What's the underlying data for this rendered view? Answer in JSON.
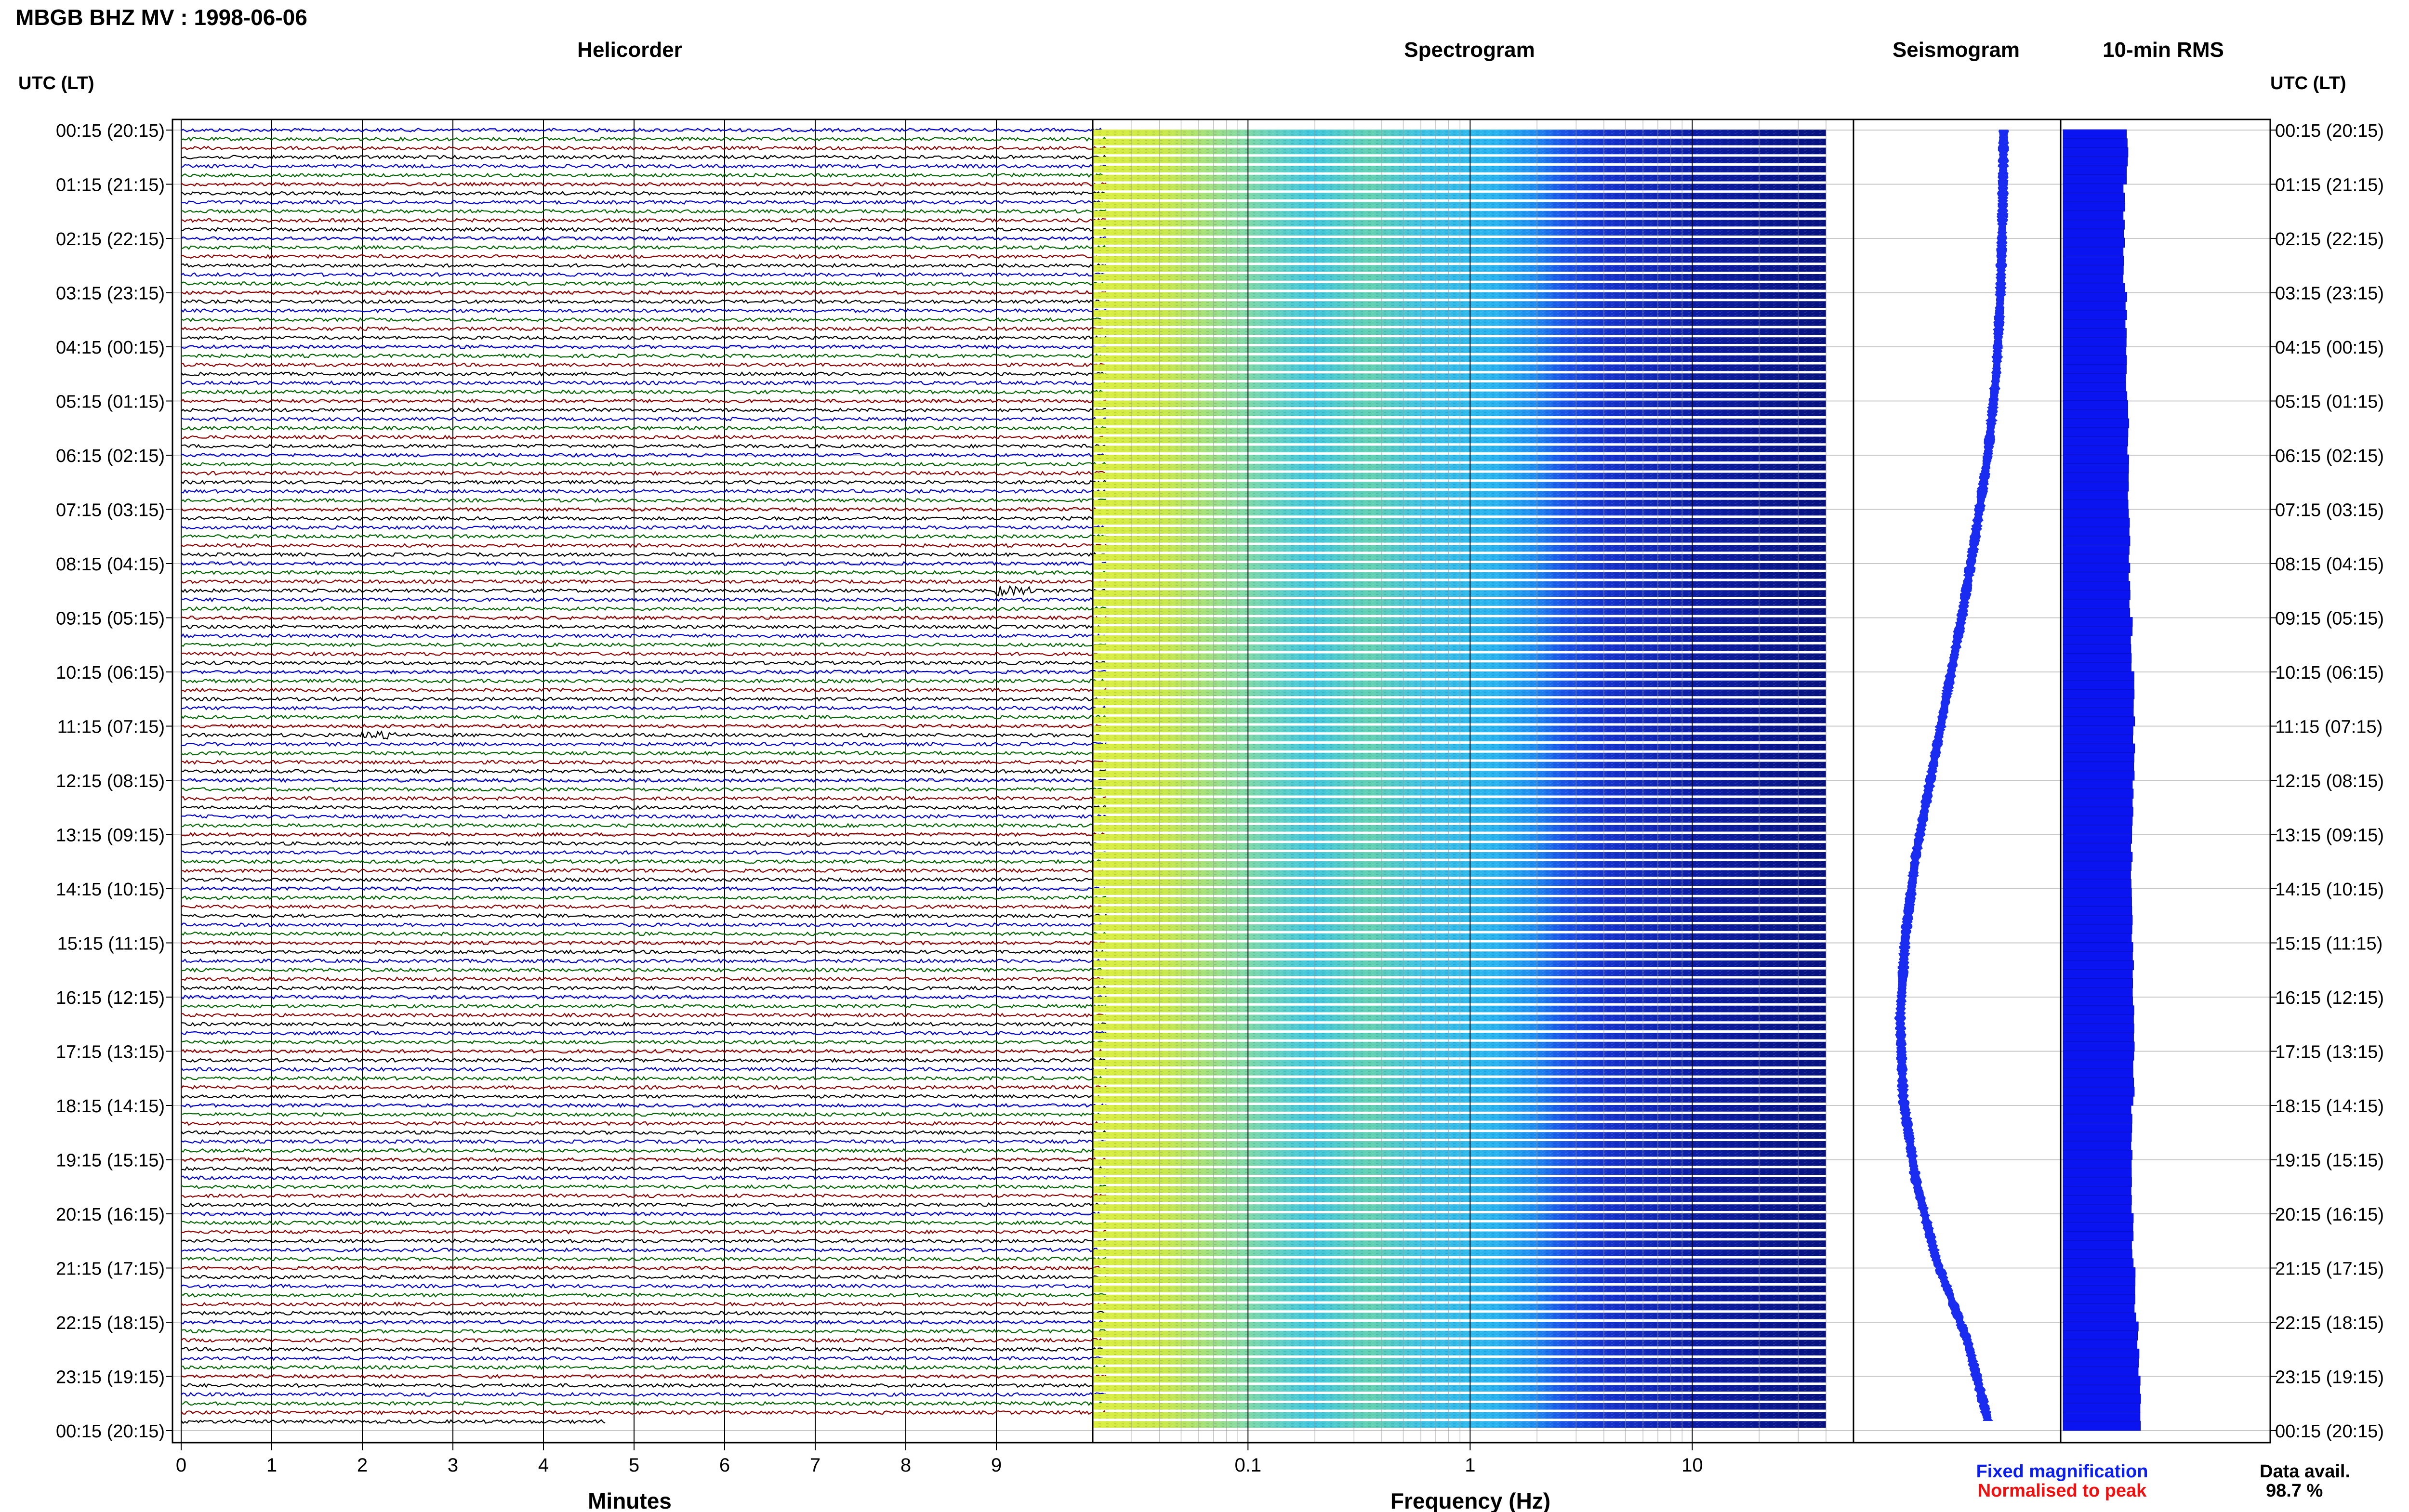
{
  "header": {
    "title": "MBGB BHZ MV : 1998-06-06"
  },
  "panels": {
    "helicorder": "Helicorder",
    "spectrogram": "Spectrogram",
    "seismogram": "Seismogram",
    "rms": "10-min RMS"
  },
  "axes": {
    "left_label": "UTC (LT)",
    "right_label": "UTC (LT)",
    "minutes_label": "Minutes",
    "frequency_label": "Frequency (Hz)",
    "minutes_ticks": [
      "0",
      "1",
      "2",
      "3",
      "4",
      "5",
      "6",
      "7",
      "8",
      "9"
    ],
    "frequency_ticks": [
      "0.1",
      "1",
      "10"
    ],
    "time_labels": [
      "00:15 (20:15)",
      "01:15 (21:15)",
      "02:15 (22:15)",
      "03:15 (23:15)",
      "04:15 (00:15)",
      "05:15 (01:15)",
      "06:15 (02:15)",
      "07:15 (03:15)",
      "08:15 (04:15)",
      "09:15 (05:15)",
      "10:15 (06:15)",
      "11:15 (07:15)",
      "12:15 (08:15)",
      "13:15 (09:15)",
      "14:15 (10:15)",
      "15:15 (11:15)",
      "16:15 (12:15)",
      "17:15 (13:15)",
      "18:15 (14:15)",
      "19:15 (15:15)",
      "20:15 (16:15)",
      "21:15 (17:15)",
      "22:15 (18:15)",
      "23:15 (19:15)",
      "00:15 (20:15)"
    ]
  },
  "legend": {
    "fixed": "Fixed magnification",
    "normalised": "Normalised to peak",
    "fixed_color": "#0a1ef0",
    "normalised_color": "#f01010"
  },
  "availability": {
    "label": "Data avail.",
    "value": "98.7 %"
  },
  "colors": {
    "trace_cycle": [
      "#000000",
      "#0000c8",
      "#006400",
      "#8b0000"
    ],
    "rms_fill": "#0a14f0",
    "seismo_trace": "#1a2cf0"
  },
  "chart_data": {
    "type": "heatmap",
    "helicorder": {
      "rows": 144,
      "row_minutes": 10,
      "x_range": [
        0,
        10
      ],
      "last_row_minutes": 4.7,
      "events": [
        {
          "row": 51,
          "minute": 9.1
        },
        {
          "row": 67,
          "minute": 2.1
        }
      ]
    },
    "spectrogram": {
      "x_scale": "log",
      "x_range": [
        0.02,
        40
      ],
      "rows": 144
    },
    "seismogram_envelope_offset": [
      0.45,
      0.44,
      0.42,
      0.38,
      0.3,
      0.18,
      0.05,
      -0.1,
      -0.25,
      -0.4,
      -0.5,
      -0.55,
      -0.52,
      -0.4,
      -0.2,
      0.1,
      0.3
    ],
    "rms_values": [
      0.58,
      0.55,
      0.55,
      0.57,
      0.57,
      0.59,
      0.59,
      0.6,
      0.6,
      0.62,
      0.64,
      0.64,
      0.63,
      0.62,
      0.62,
      0.63,
      0.64,
      0.64,
      0.62,
      0.62,
      0.63,
      0.65,
      0.68,
      0.7
    ]
  }
}
